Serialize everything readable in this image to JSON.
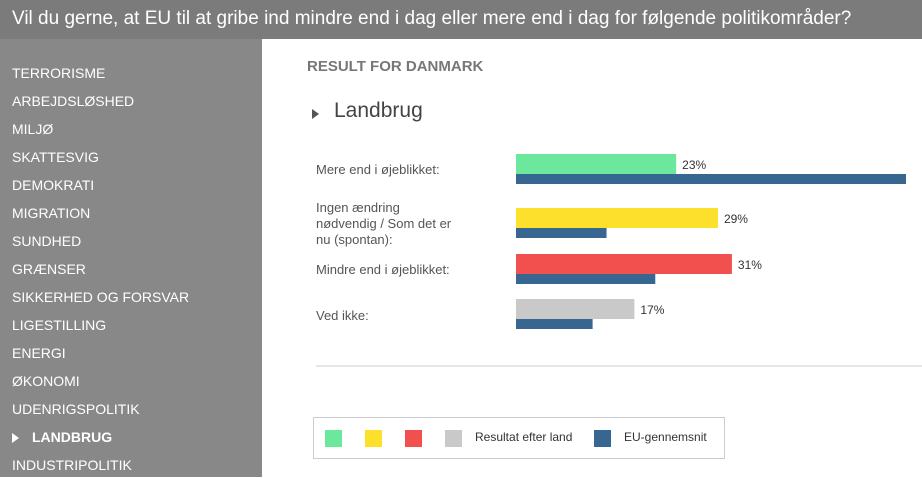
{
  "header": {
    "question": "Vil du gerne, at EU til at gribe ind mindre end i dag eller mere end i dag for følgende politikområder?"
  },
  "sidebar": {
    "items": [
      {
        "label": "TERRORISME",
        "active": false
      },
      {
        "label": "ARBEJDSLØSHED",
        "active": false
      },
      {
        "label": "MILJØ",
        "active": false
      },
      {
        "label": "SKATTESVIG",
        "active": false
      },
      {
        "label": "DEMOKRATI",
        "active": false
      },
      {
        "label": "MIGRATION",
        "active": false
      },
      {
        "label": "SUNDHED",
        "active": false
      },
      {
        "label": "GRÆNSER",
        "active": false
      },
      {
        "label": "SIKKERHED OG FORSVAR",
        "active": false
      },
      {
        "label": "LIGESTILLING",
        "active": false
      },
      {
        "label": "ENERGI",
        "active": false
      },
      {
        "label": "ØKONOMI",
        "active": false
      },
      {
        "label": "UDENRIGSPOLITIK",
        "active": false
      },
      {
        "label": "LANDBRUG",
        "active": true
      },
      {
        "label": "INDUSTRIPOLITIK",
        "active": false
      }
    ]
  },
  "main": {
    "result_title": "RESULT FOR DANMARK",
    "topic": "Landbrug"
  },
  "colors": {
    "eu": "#376690",
    "divider": "#cccccc",
    "label": "#555555"
  },
  "chart_data": {
    "type": "bar",
    "orientation": "horizontal",
    "title": "Landbrug",
    "categories": [
      "Mere end i øjeblikket:",
      "Ingen ændring nødvendig / Som det er nu (spontan):",
      "Mindre end i øjeblikket:",
      "Ved ikke:"
    ],
    "series": [
      {
        "name": "Resultat efter land",
        "values": [
          23,
          29,
          31,
          17
        ],
        "labels": [
          "23%",
          "29%",
          "31%",
          "17%"
        ],
        "colors": [
          "#6be89b",
          "#fce02c",
          "#f2504f",
          "#c9c9c9"
        ]
      },
      {
        "name": "EU-gennemsnit",
        "values": [
          56,
          13,
          20,
          11
        ],
        "color": "#376690"
      }
    ],
    "xlim": [
      0,
      56
    ],
    "unit": "%"
  },
  "legend": {
    "items": [
      {
        "color": "#6be89b",
        "label": ""
      },
      {
        "color": "#fce02c",
        "label": ""
      },
      {
        "color": "#f2504f",
        "label": ""
      },
      {
        "color": "#c9c9c9",
        "label": "Resultat efter land"
      },
      {
        "color": "#376690",
        "label": "EU-gennemsnit"
      }
    ]
  }
}
